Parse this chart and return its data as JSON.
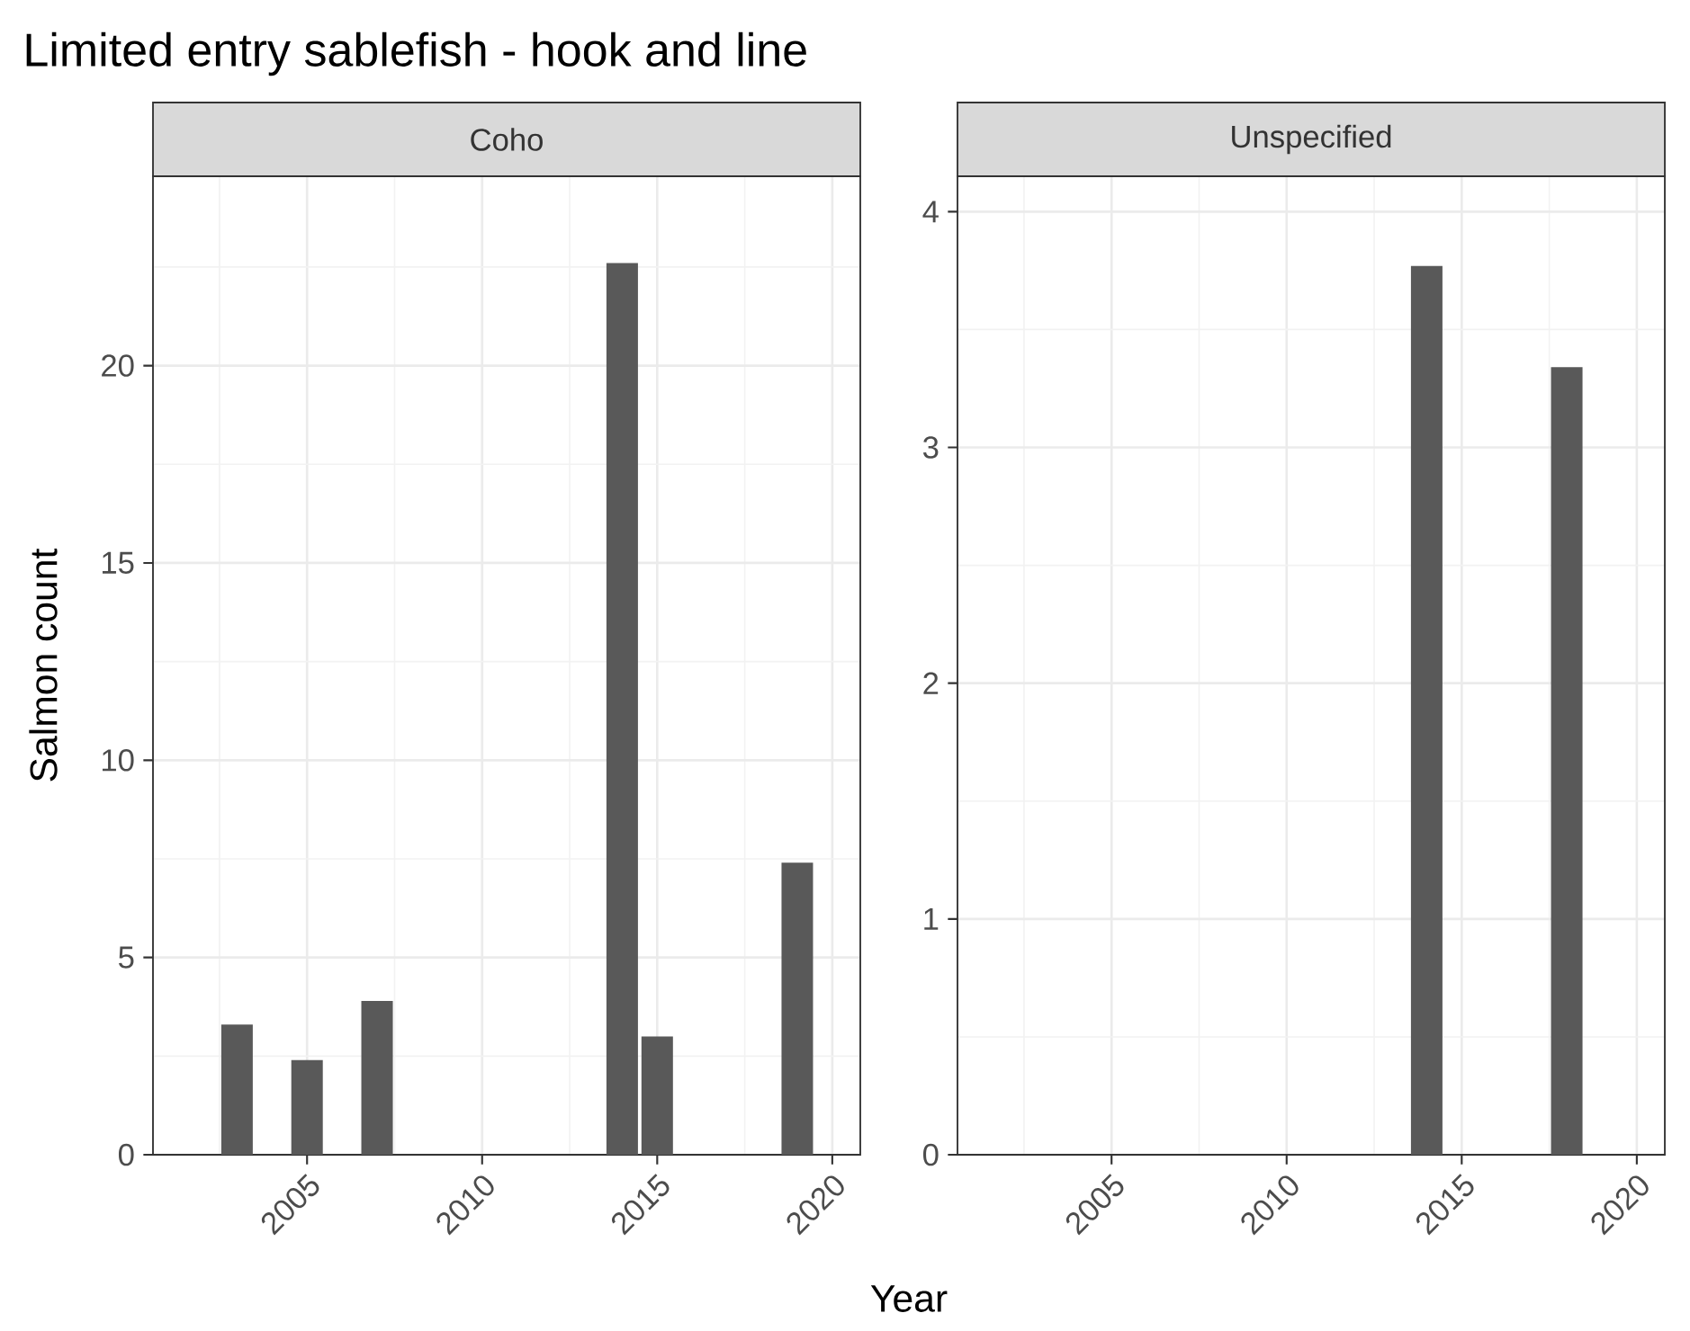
{
  "chart_data": [
    {
      "type": "bar",
      "title": "Limited entry sablefish - hook and line",
      "subtitle": "Coho",
      "xlabel": "Year",
      "ylabel": "Salmon count",
      "x": [
        2003,
        2005,
        2007,
        2014,
        2015,
        2019
      ],
      "values": [
        3.3,
        2.4,
        3.9,
        22.6,
        3.0,
        7.4
      ],
      "color": "#595959",
      "xlim": [
        2000.6,
        2020.8
      ],
      "xticks": [
        2005,
        2010,
        2015,
        2020
      ],
      "ylim": [
        0,
        24.8
      ],
      "yticks": [
        0,
        5,
        10,
        15,
        20
      ],
      "grid": true
    },
    {
      "type": "bar",
      "subtitle": "Unspecified",
      "x": [
        2014,
        2018
      ],
      "values": [
        3.77,
        3.34
      ],
      "color": "#595959",
      "xlim": [
        2000.6,
        2020.8
      ],
      "xticks": [
        2005,
        2010,
        2015,
        2020
      ],
      "ylim": [
        0,
        4.15
      ],
      "yticks": [
        0,
        1,
        2,
        3,
        4
      ],
      "grid": true
    }
  ]
}
